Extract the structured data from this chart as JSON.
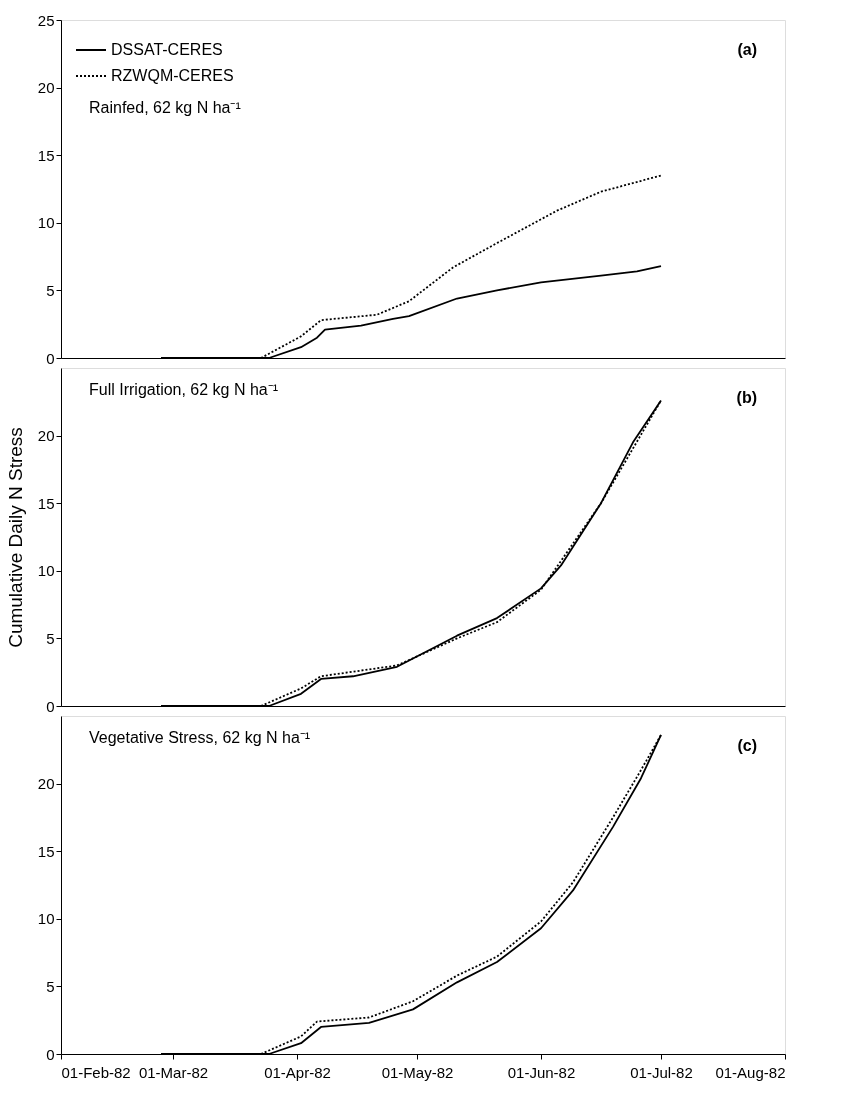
{
  "chart_data": [
    {
      "type": "line",
      "ylabel": null,
      "annotations": [
        "Rainfed, 62 kg N ha⁻¹",
        "(a)"
      ],
      "legend": "top left",
      "grid": false,
      "marker": "none",
      "tick_labels": "y",
      "xlim": [
        "1982-02-01",
        "1982-08-01"
      ],
      "ylim": [
        0,
        25
      ],
      "yticks": [
        0,
        5,
        10,
        15,
        20,
        25
      ],
      "series": [
        {
          "name": "DSSAT-CERES",
          "color": "#000000",
          "line_style": "solid",
          "x": [
            "1982-02-26",
            "1982-03-25",
            "1982-04-02",
            "1982-04-06",
            "1982-04-08",
            "1982-04-17",
            "1982-04-25",
            "1982-04-29",
            "1982-05-11",
            "1982-05-21",
            "1982-06-01",
            "1982-06-16",
            "1982-06-25",
            "1982-07-01"
          ],
          "values": [
            0,
            0,
            0.8,
            1.5,
            2.1,
            2.4,
            2.9,
            3.1,
            4.4,
            5.0,
            5.6,
            6.1,
            6.4,
            6.8
          ]
        },
        {
          "name": "RZWQM-CERES",
          "color": "#000000",
          "line_style": "dotted",
          "x": [
            "1982-02-26",
            "1982-03-23",
            "1982-04-02",
            "1982-04-07",
            "1982-04-21",
            "1982-04-29",
            "1982-05-10",
            "1982-05-21",
            "1982-06-05",
            "1982-06-16",
            "1982-07-01"
          ],
          "values": [
            0,
            0,
            1.6,
            2.8,
            3.2,
            4.2,
            6.7,
            8.5,
            10.9,
            12.3,
            13.5
          ]
        }
      ]
    },
    {
      "type": "line",
      "ylabel": "Cumulative Daily N Stress",
      "annotations": [
        "Full Irrigation, 62 kg N ha⁻¹",
        "(b)"
      ],
      "legend": false,
      "grid": false,
      "marker": "none",
      "tick_labels": "y",
      "xlim": [
        "1982-02-01",
        "1982-08-01"
      ],
      "ylim": [
        0,
        25
      ],
      "yticks": [
        0,
        5,
        10,
        15,
        20
      ],
      "series": [
        {
          "color": "#000000",
          "line_style": "solid",
          "x": [
            "1982-02-26",
            "1982-03-25",
            "1982-04-02",
            "1982-04-07",
            "1982-04-15",
            "1982-04-26",
            "1982-05-11",
            "1982-05-21",
            "1982-06-01",
            "1982-06-06",
            "1982-06-16",
            "1982-06-24",
            "1982-07-01"
          ],
          "values": [
            0,
            0,
            0.9,
            2.0,
            2.2,
            2.9,
            5.2,
            6.5,
            8.7,
            10.4,
            15.0,
            19.5,
            22.6
          ]
        },
        {
          "color": "#000000",
          "line_style": "dotted",
          "x": [
            "1982-02-26",
            "1982-03-23",
            "1982-04-02",
            "1982-04-07",
            "1982-04-26",
            "1982-05-11",
            "1982-05-21",
            "1982-06-01",
            "1982-06-16",
            "1982-07-01"
          ],
          "values": [
            0,
            0,
            1.3,
            2.2,
            3.0,
            5.0,
            6.2,
            8.6,
            15.0,
            22.6
          ]
        }
      ]
    },
    {
      "type": "line",
      "ylabel": null,
      "annotations": [
        "Vegetative Stress, 62 kg N ha⁻¹",
        "(c)"
      ],
      "legend": false,
      "grid": false,
      "marker": "none",
      "xlim": [
        "1982-02-01",
        "1982-08-01"
      ],
      "xticks": [
        {
          "value": "1982-02-01",
          "label": "01-Feb-82"
        },
        {
          "value": "1982-03-01",
          "label": "01-Mar-82"
        },
        {
          "value": "1982-04-01",
          "label": "01-Apr-82"
        },
        {
          "value": "1982-05-01",
          "label": "01-May-82"
        },
        {
          "value": "1982-06-01",
          "label": "01-Jun-82"
        },
        {
          "value": "1982-07-01",
          "label": "01-Jul-82"
        },
        {
          "value": "1982-08-01",
          "label": "01-Aug-82"
        }
      ],
      "ylim": [
        0,
        25
      ],
      "yticks": [
        0,
        5,
        10,
        15,
        20
      ],
      "series": [
        {
          "color": "#000000",
          "line_style": "solid",
          "x": [
            "1982-02-26",
            "1982-03-25",
            "1982-04-02",
            "1982-04-07",
            "1982-04-19",
            "1982-04-30",
            "1982-05-11",
            "1982-05-21",
            "1982-06-01",
            "1982-06-09",
            "1982-06-19",
            "1982-06-26",
            "1982-07-01"
          ],
          "values": [
            0,
            0,
            0.8,
            2.0,
            2.3,
            3.3,
            5.3,
            6.8,
            9.3,
            12.1,
            16.8,
            20.4,
            23.6
          ]
        },
        {
          "color": "#000000",
          "line_style": "dotted",
          "x": [
            "1982-02-26",
            "1982-03-23",
            "1982-04-02",
            "1982-04-06",
            "1982-04-19",
            "1982-04-30",
            "1982-05-11",
            "1982-05-21",
            "1982-06-01",
            "1982-06-09",
            "1982-06-19",
            "1982-06-26",
            "1982-07-01"
          ],
          "values": [
            0,
            0,
            1.3,
            2.4,
            2.7,
            3.9,
            5.8,
            7.2,
            9.8,
            12.7,
            17.5,
            21.0,
            23.6
          ]
        }
      ]
    }
  ]
}
